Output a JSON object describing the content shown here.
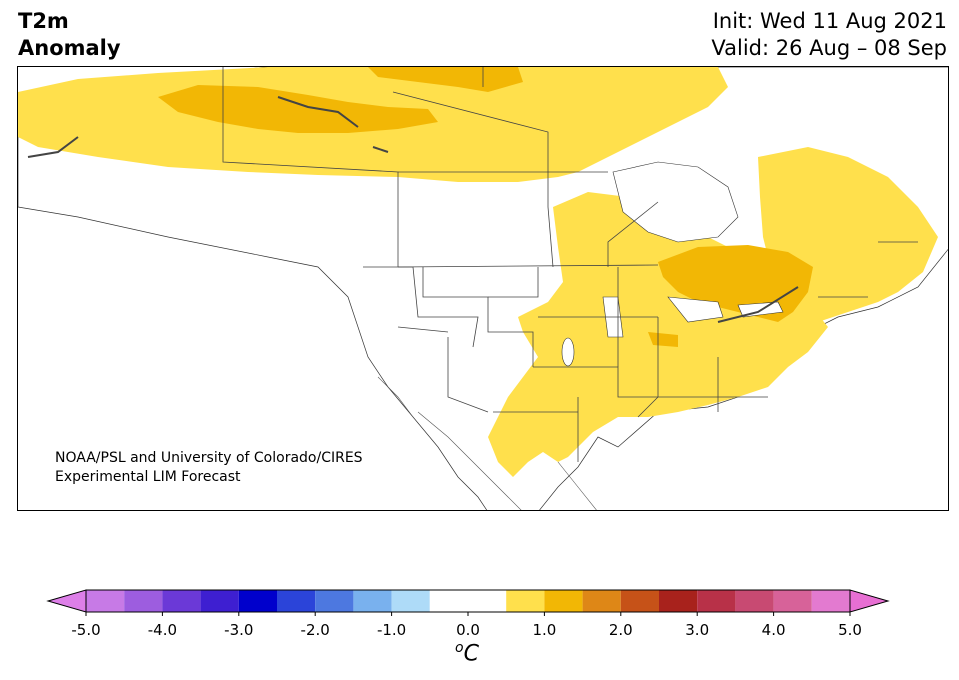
{
  "title": {
    "variable": "T2m",
    "quantity": "Anomaly",
    "init": "Init: Wed 11 Aug 2021",
    "valid": "Valid: 26 Aug – 08 Sep"
  },
  "credit": {
    "line1": "NOAA/PSL and University of Colorado/CIRES",
    "line2": "Experimental LIM Forecast"
  },
  "colorbar": {
    "unit_prefix": "o",
    "unit": "C",
    "ticks": [
      "-5.0",
      "-4.0",
      "-3.0",
      "-2.0",
      "-1.0",
      "0.0",
      "1.0",
      "2.0",
      "3.0",
      "4.0",
      "5.0"
    ],
    "tick_values": [
      -5,
      -4,
      -3,
      -2,
      -1,
      0,
      1,
      2,
      3,
      4,
      5
    ],
    "bin_edges": [
      -5,
      -4.5,
      -4,
      -3.5,
      -3,
      -2.5,
      -2,
      -1.5,
      -1,
      -0.5,
      0.5,
      1,
      1.5,
      2,
      2.5,
      3,
      3.5,
      4,
      4.5,
      5
    ],
    "colors": [
      "#c77ae6",
      "#9d5ddf",
      "#6b39d7",
      "#3e1fd1",
      "#0000cc",
      "#2b44d9",
      "#4d78e0",
      "#79b1ee",
      "#aedbf8",
      "#ffffff",
      "#ffe04c",
      "#f2b705",
      "#de8717",
      "#c65218",
      "#a8221c",
      "#b83148",
      "#c84a72",
      "#d76299",
      "#e37ad0"
    ],
    "under_color": "#dd7fe8",
    "over_color": "#e76fd3"
  },
  "map": {
    "region": "North America",
    "anomaly_areas": [
      {
        "name": "northern-canada-warm",
        "value": "0.5 to 1.0"
      },
      {
        "name": "yukon-nwt-warm-core",
        "value": "1.0 to 1.5"
      },
      {
        "name": "nunavut-warm-core",
        "value": "1.0 to 1.5"
      },
      {
        "name": "central-us-warm",
        "value": "0.5 to 1.0"
      },
      {
        "name": "great-lakes-ontario-warm-core",
        "value": "1.0 to 1.5"
      },
      {
        "name": "quebec-atlantic-warm",
        "value": "0.5 to 1.0"
      }
    ]
  }
}
